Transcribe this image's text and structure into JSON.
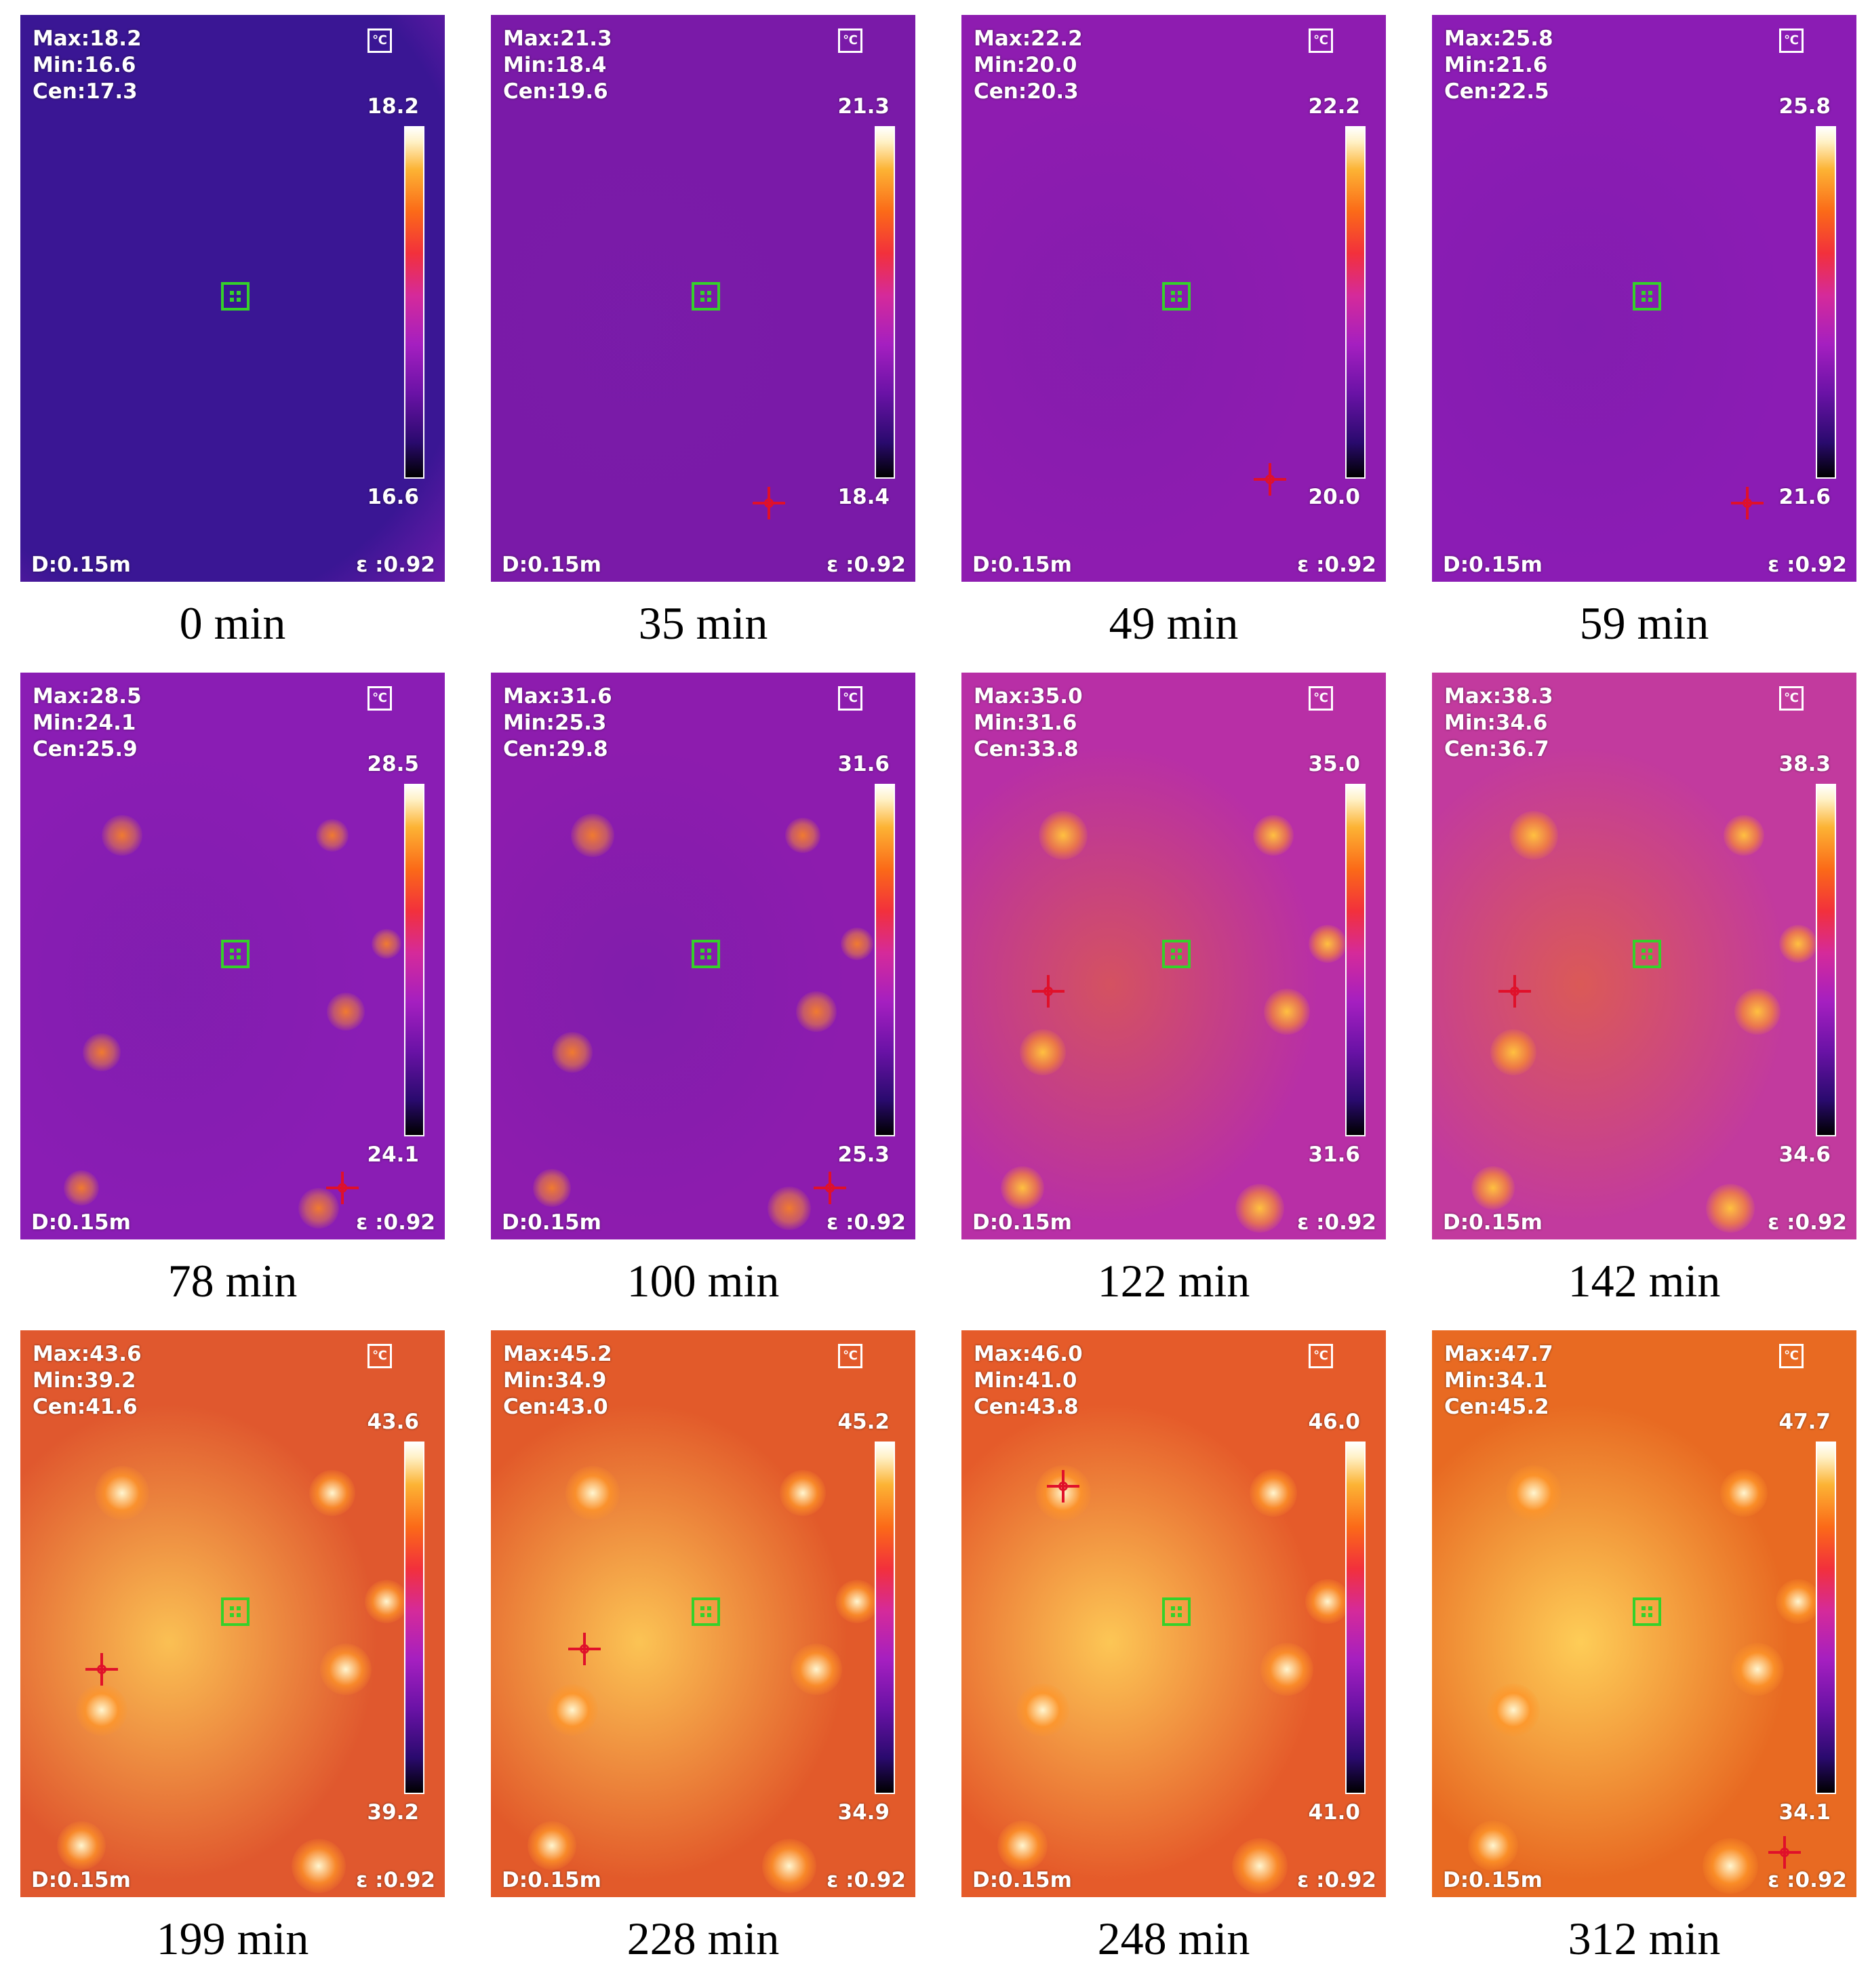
{
  "overlay": {
    "unit_icon": "℃",
    "distance": "D:0.15m",
    "emissivity": "ε :0.92"
  },
  "panels": [
    {
      "caption": "0 min",
      "max": "Max:18.2",
      "min": "Min:16.6",
      "cen": "Cen:17.3",
      "scale_max": "18.2",
      "scale_min": "16.6",
      "base_color": "#3f1898",
      "warm_level": 0.0
    },
    {
      "caption": "35 min",
      "max": "Max:21.3",
      "min": "Min:18.4",
      "cen": "Cen:19.6",
      "scale_max": "21.3",
      "scale_min": "18.4",
      "base_color": "#7a1aa8",
      "warm_level": 0.05
    },
    {
      "caption": "49 min",
      "max": "Max:22.2",
      "min": "Min:20.0",
      "cen": "Cen:20.3",
      "scale_max": "22.2",
      "scale_min": "20.0",
      "base_color": "#8e1cb0",
      "warm_level": 0.08
    },
    {
      "caption": "59 min",
      "max": "Max:25.8",
      "min": "Min:21.6",
      "cen": "Cen:22.5",
      "scale_max": "25.8",
      "scale_min": "21.6",
      "base_color": "#8b1cb4",
      "warm_level": 0.1
    },
    {
      "caption": "78 min",
      "max": "Max:28.5",
      "min": "Min:24.1",
      "cen": "Cen:25.9",
      "scale_max": "28.5",
      "scale_min": "24.1",
      "base_color": "#8a1db4",
      "warm_level": 0.15
    },
    {
      "caption": "100 min",
      "max": "Max:31.6",
      "min": "Min:25.3",
      "cen": "Cen:29.8",
      "scale_max": "31.6",
      "scale_min": "25.3",
      "base_color": "#8d1cae",
      "warm_level": 0.25
    },
    {
      "caption": "122 min",
      "max": "Max:35.0",
      "min": "Min:31.6",
      "cen": "Cen:33.8",
      "scale_max": "35.0",
      "scale_min": "31.6",
      "base_color": "#b82fa6",
      "warm_level": 0.55
    },
    {
      "caption": "142 min",
      "max": "Max:38.3",
      "min": "Min:34.6",
      "cen": "Cen:36.7",
      "scale_max": "38.3",
      "scale_min": "34.6",
      "base_color": "#c23a9e",
      "warm_level": 0.6
    },
    {
      "caption": "199 min",
      "max": "Max:43.6",
      "min": "Min:39.2",
      "cen": "Cen:41.6",
      "scale_max": "43.6",
      "scale_min": "39.2",
      "base_color": "#e0582e",
      "warm_level": 0.85
    },
    {
      "caption": "228 min",
      "max": "Max:45.2",
      "min": "Min:34.9",
      "cen": "Cen:43.0",
      "scale_max": "45.2",
      "scale_min": "34.9",
      "base_color": "#e25a2a",
      "warm_level": 0.88
    },
    {
      "caption": "248 min",
      "max": "Max:46.0",
      "min": "Min:41.0",
      "cen": "Cen:43.8",
      "scale_max": "46.0",
      "scale_min": "41.0",
      "base_color": "#e55b2a",
      "warm_level": 0.9
    },
    {
      "caption": "312 min",
      "max": "Max:47.7",
      "min": "Min:34.1",
      "cen": "Cen:45.2",
      "scale_max": "47.7",
      "scale_min": "34.1",
      "base_color": "#e86a22",
      "warm_level": 0.95
    }
  ]
}
